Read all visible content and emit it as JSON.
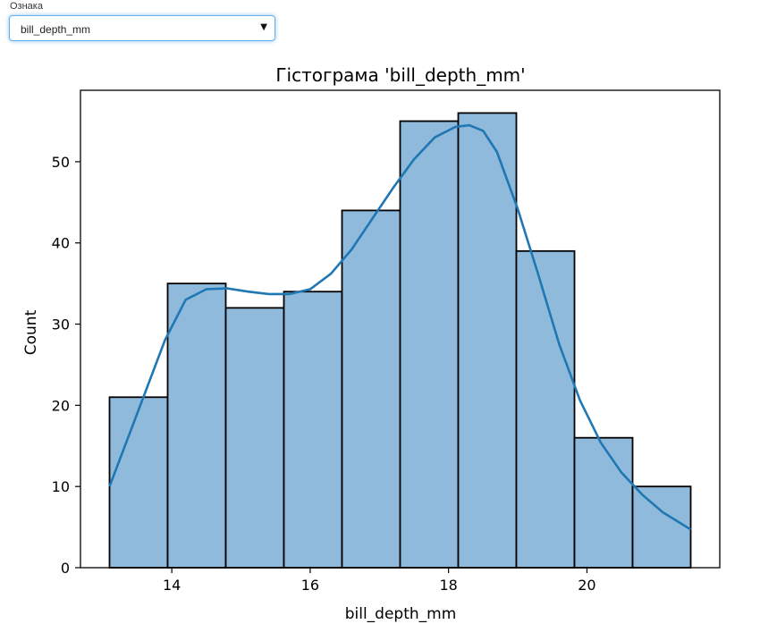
{
  "control": {
    "label": "Ознака",
    "selected": "bill_depth_mm"
  },
  "chart_data": {
    "type": "bar",
    "title": "Гістограма 'bill_depth_mm'",
    "xlabel": "bill_depth_mm",
    "ylabel": "Count",
    "bin_edges": [
      13.1,
      13.94,
      14.78,
      15.62,
      16.46,
      17.3,
      18.14,
      18.98,
      19.82,
      20.66,
      21.5
    ],
    "values": [
      21,
      35,
      32,
      34,
      44,
      55,
      56,
      39,
      16,
      10
    ],
    "xlim": [
      12.68,
      21.92
    ],
    "ylim": [
      0,
      58.8
    ],
    "xticks": [
      14,
      16,
      18,
      20
    ],
    "yticks": [
      0,
      10,
      20,
      30,
      40,
      50
    ],
    "kde": {
      "x": [
        13.1,
        13.5,
        13.9,
        14.2,
        14.5,
        14.8,
        15.1,
        15.4,
        15.7,
        16.0,
        16.3,
        16.6,
        16.9,
        17.2,
        17.5,
        17.8,
        18.1,
        18.3,
        18.5,
        18.7,
        19.0,
        19.3,
        19.6,
        19.9,
        20.2,
        20.5,
        20.8,
        21.1,
        21.5
      ],
      "y": [
        10,
        19,
        28,
        33,
        34.3,
        34.4,
        34,
        33.7,
        33.7,
        34.3,
        36.2,
        39.2,
        43,
        46.8,
        50.3,
        53,
        54.3,
        54.5,
        53.8,
        51.2,
        44.2,
        36,
        27.5,
        20.6,
        15.4,
        11.7,
        9,
        6.8,
        4.7
      ]
    },
    "grid": false,
    "colors": {
      "bar_fill": "#8fbadb",
      "bar_edge": "#000000",
      "kde_line": "#1f77b4"
    }
  }
}
